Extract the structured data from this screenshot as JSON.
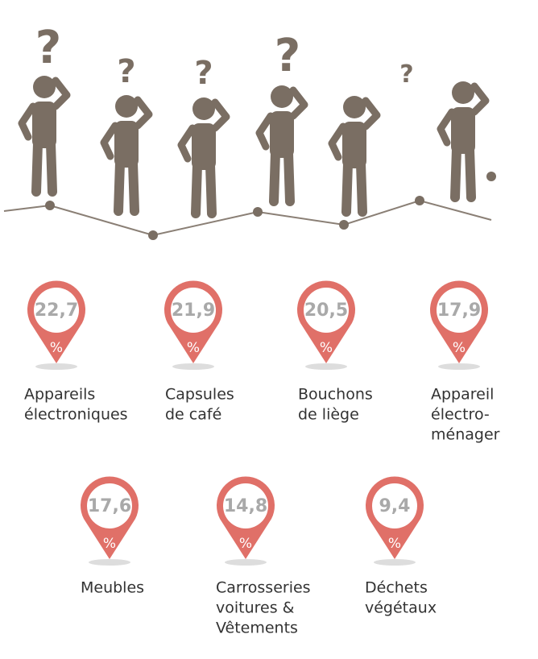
{
  "question_marks": [
    "?",
    "?",
    "?",
    "?",
    "?"
  ],
  "unit": "%",
  "items": [
    {
      "value": "22,7",
      "label": [
        "Appareils",
        "électroniques"
      ]
    },
    {
      "value": "21,9",
      "label": [
        "Capsules",
        "de café"
      ]
    },
    {
      "value": "20,5",
      "label": [
        "Bouchons",
        "de liège"
      ]
    },
    {
      "value": "17,9",
      "label": [
        "Appareil",
        "électro-",
        "ménager"
      ]
    },
    {
      "value": "17,6",
      "label": [
        "Meubles"
      ]
    },
    {
      "value": "14,8",
      "label": [
        "Carrosseries",
        "voitures &",
        "Vêtements"
      ]
    },
    {
      "value": "9,4",
      "label": [
        "Déchets",
        "végétaux"
      ]
    }
  ]
}
